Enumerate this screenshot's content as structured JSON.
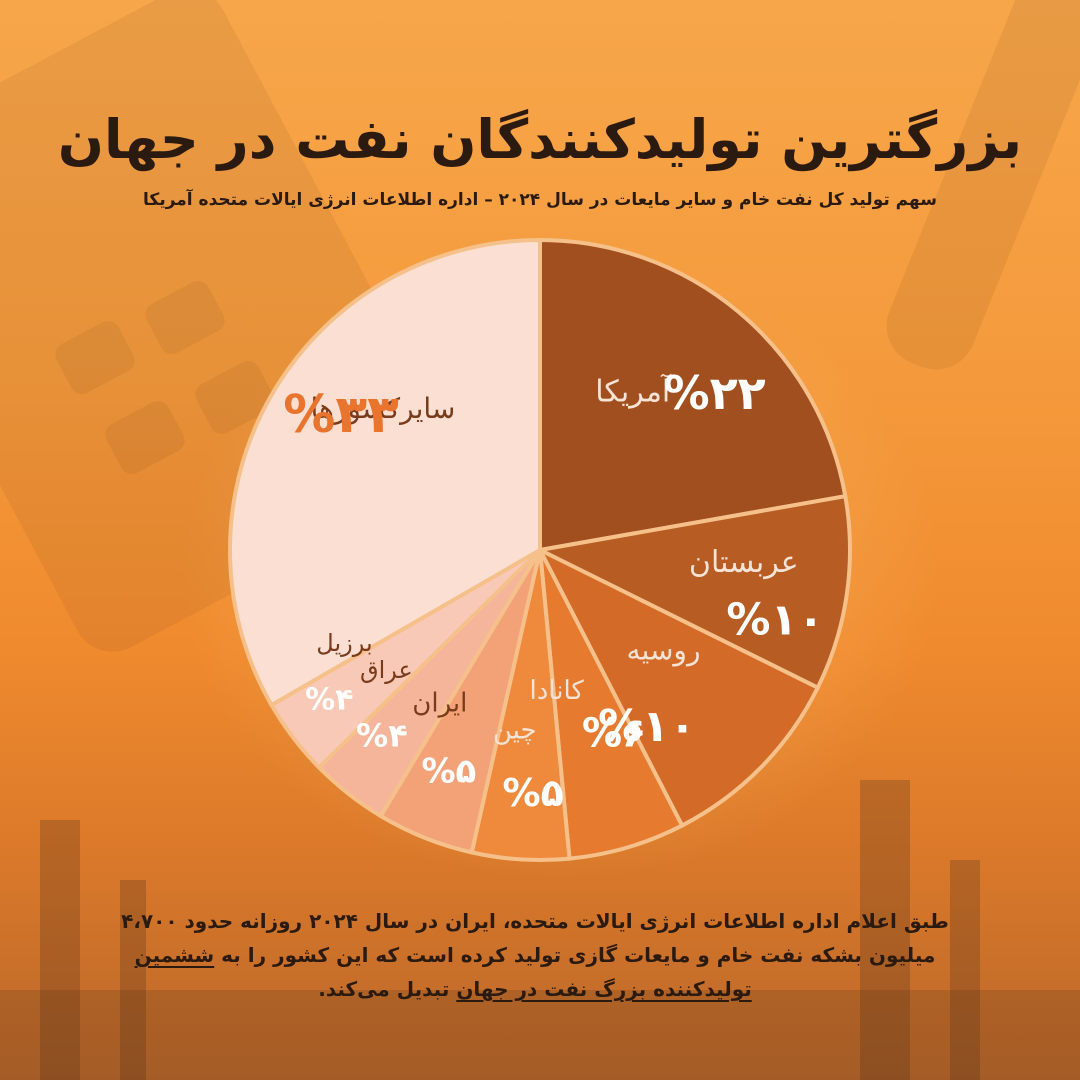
{
  "title": "بزرگترین تولیدکنندگان نفت در جهان",
  "subtitle": "سهم تولید کل نفت خام و سایر مایعات در سال ۲۰۲۴ – اداره اطلاعات انرژی ایالات متحده آمریکا",
  "chart_data": {
    "type": "pie",
    "title": "بزرگترین تولیدکنندگان نفت در جهان",
    "slices": [
      {
        "label": "آمریکا",
        "value": 22,
        "value_label": "%۲۲",
        "color": "#a14f1e"
      },
      {
        "label": "عربستان",
        "value": 10,
        "value_label": "%۱۰",
        "color": "#b75c22"
      },
      {
        "label": "روسیه",
        "value": 10,
        "value_label": "%۱۰",
        "color": "#d36a27"
      },
      {
        "label": "کانادا",
        "value": 6,
        "value_label": "%۶",
        "color": "#e67a2f"
      },
      {
        "label": "چین",
        "value": 5,
        "value_label": "%۵",
        "color": "#ef8a3c"
      },
      {
        "label": "ایران",
        "value": 5,
        "value_label": "%۵",
        "color": "#f2a276"
      },
      {
        "label": "عراق",
        "value": 4,
        "value_label": "%۴",
        "color": "#f5b59a"
      },
      {
        "label": "برزیل",
        "value": 4,
        "value_label": "%۴",
        "color": "#f8c9b6"
      },
      {
        "label": "سایرکشورها",
        "value": 33,
        "value_label": "%۳۳",
        "color": "#fbdfd2"
      }
    ]
  },
  "footnote": {
    "line1": "طبق اعلام اداره اطلاعات انرژی ایالات متحده، ایران در سال ۲۰۲۴ روزانه حدود ۴،۷۰۰",
    "line2_pre": "میلیون بشکه نفت خام و مایعات گازی تولید کرده است که این کشور را به ",
    "line2_emph": "ششمین",
    "line3_emph": "تولیدکننده بزرگ نفت در جهان",
    "line3_post": " تبدیل می‌کند."
  }
}
